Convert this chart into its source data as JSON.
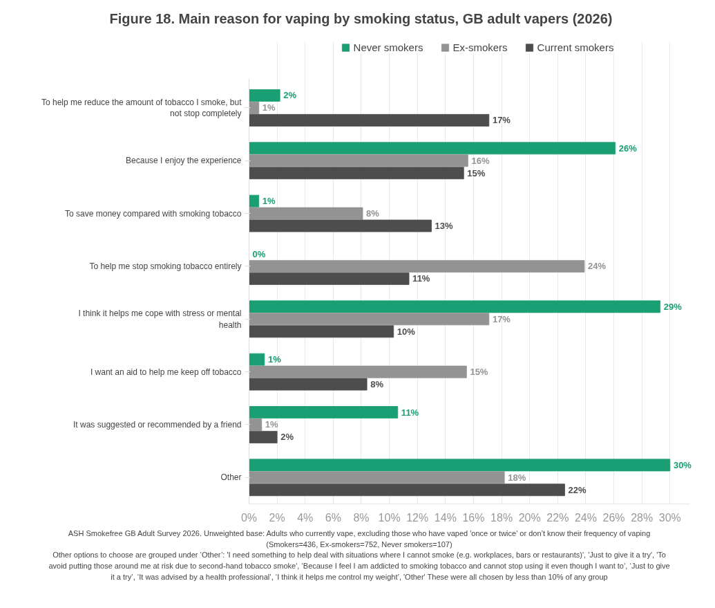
{
  "chart_data": {
    "type": "bar",
    "orientation": "horizontal",
    "title": "Figure 18. Main reason for vaping by smoking status, GB adult vapers (2026)",
    "categories": [
      "To help me reduce the amount of tobacco I smoke, but not stop completely",
      "Because I enjoy the experience",
      "To save money compared with smoking tobacco",
      "To help me stop smoking tobacco entirely",
      "I think it helps me cope with stress or mental health",
      "I want an aid to help me keep off tobacco",
      "It was suggested or recommended by a friend",
      "Other"
    ],
    "series": [
      {
        "name": "Never smokers",
        "color": "#1a9e74",
        "values": [
          2.2,
          26.1,
          0.7,
          0.0,
          29.3,
          1.1,
          10.6,
          30.0
        ],
        "value_labels": [
          "2%",
          "26%",
          "1%",
          "0%",
          "29%",
          "1%",
          "11%",
          "30%"
        ]
      },
      {
        "name": "Ex-smokers",
        "color": "#939393",
        "values": [
          0.7,
          15.6,
          8.1,
          23.9,
          17.1,
          15.5,
          0.9,
          18.2
        ],
        "value_labels": [
          "1%",
          "16%",
          "8%",
          "24%",
          "17%",
          "15%",
          "1%",
          "18%"
        ]
      },
      {
        "name": "Current smokers",
        "color": "#4d4d4d",
        "values": [
          17.1,
          15.3,
          13.0,
          11.4,
          10.3,
          8.4,
          2.0,
          22.5
        ],
        "value_labels": [
          "17%",
          "15%",
          "13%",
          "11%",
          "10%",
          "8%",
          "2%",
          "22%"
        ]
      }
    ],
    "xlim": [
      0,
      31.4
    ],
    "xticks": [
      {
        "value": 0,
        "label": "0%"
      },
      {
        "value": 2,
        "label": "2%"
      },
      {
        "value": 4,
        "label": "4%"
      },
      {
        "value": 6,
        "label": "6%"
      },
      {
        "value": 8,
        "label": "8%"
      },
      {
        "value": 10,
        "label": "10%"
      },
      {
        "value": 12,
        "label": "12%"
      },
      {
        "value": 14,
        "label": "14%"
      },
      {
        "value": 16,
        "label": "16%"
      },
      {
        "value": 18,
        "label": "18%"
      },
      {
        "value": 20,
        "label": "20%"
      },
      {
        "value": 22,
        "label": "22%"
      },
      {
        "value": 24,
        "label": "24%"
      },
      {
        "value": 26,
        "label": "26%"
      },
      {
        "value": 28,
        "label": "28%"
      },
      {
        "value": 30,
        "label": "30%"
      }
    ],
    "grid": "x",
    "legend": "top",
    "annotations": [
      "ASH Smokefree GB Adult Survey 2026. Unweighted base: Adults who currently vape, excluding those who have vaped 'once or twice' or don’t know their frequency of vaping (Smokers=436, Ex-smokers=752, Never smokers=107)",
      "Other options to choose are grouped under ‘Other’: 'I need something to help deal with situations where I cannot smoke (e.g. workplaces, bars or restaurants)', 'Just to give it a try', 'To avoid putting those around me at risk due to second-hand tobacco smoke', ‘Because I feel I am addicted to smoking tobacco and cannot stop using it even though I want to’, ‘Just to give it a try’, ‘It was advised by a health professional’, ‘I think it helps me control my weight’, 'Other' These were all chosen by less than 10% of any group"
    ]
  }
}
